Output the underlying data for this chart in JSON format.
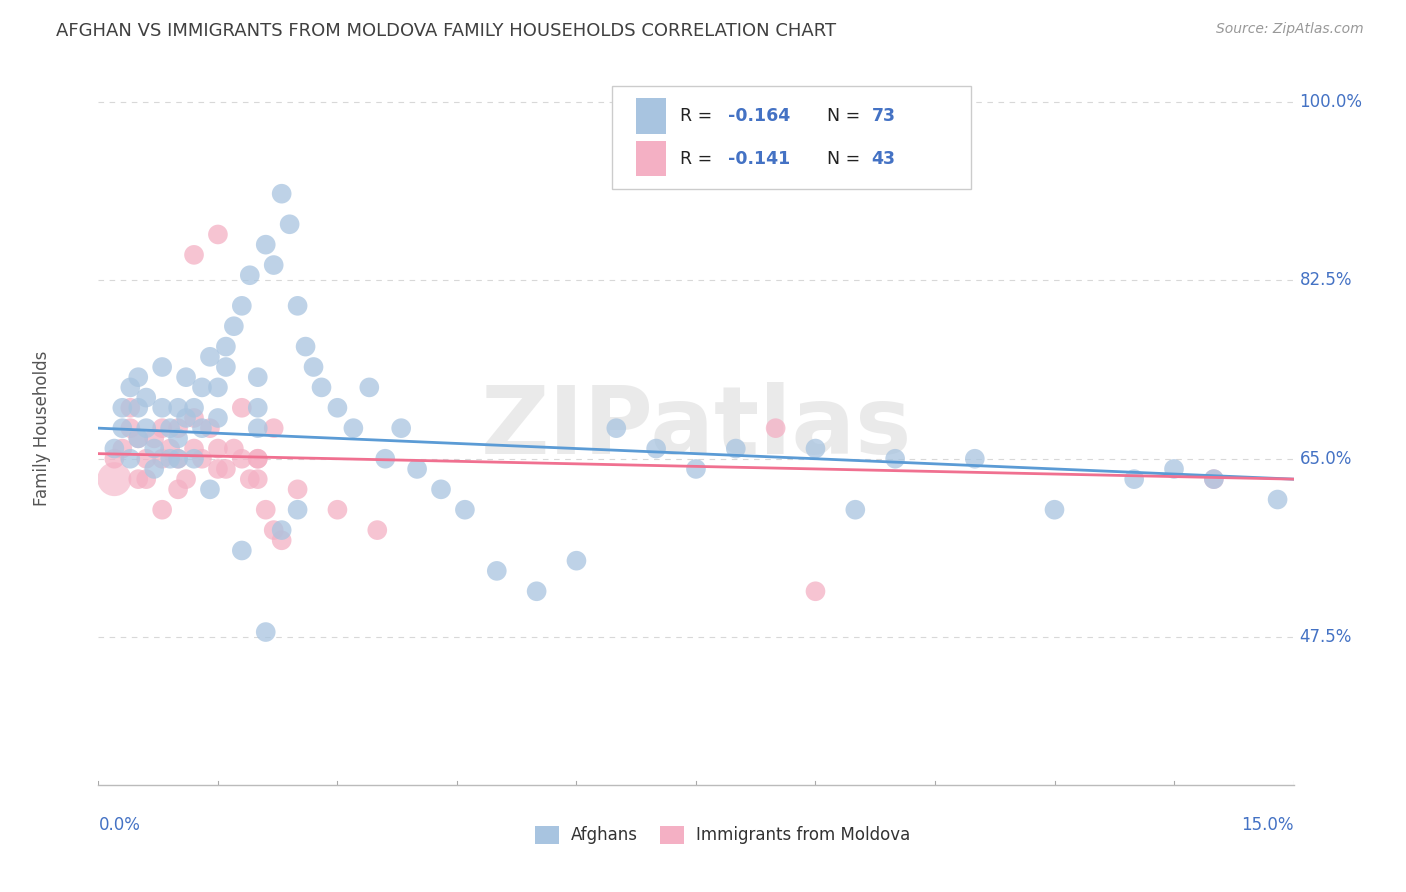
{
  "title": "AFGHAN VS IMMIGRANTS FROM MOLDOVA FAMILY HOUSEHOLDS CORRELATION CHART",
  "source": "Source: ZipAtlas.com",
  "ylabel": "Family Households",
  "xlim": [
    0.0,
    15.0
  ],
  "ylim": [
    33.0,
    103.0
  ],
  "yticks": [
    47.5,
    65.0,
    82.5,
    100.0
  ],
  "ytick_labels": [
    "47.5%",
    "65.0%",
    "82.5%",
    "100.0%"
  ],
  "xtick_labels": [
    "0.0%",
    "15.0%"
  ],
  "watermark": "ZIPatlas",
  "afghans_color": "#a8c4e0",
  "moldova_color": "#f4b0c4",
  "line_blue": "#5b9bd5",
  "line_pink": "#f07090",
  "regression_blue": [
    68.0,
    63.0
  ],
  "regression_pink": [
    65.5,
    63.0
  ],
  "background_color": "#ffffff",
  "grid_color": "#d8d8d8",
  "title_color": "#404040",
  "source_color": "#999999",
  "axis_label_color": "#4472c4",
  "legend_r_color": "#4472c4",
  "legend_n_color": "#4472c4",
  "afghans_x": [
    0.2,
    0.3,
    0.3,
    0.4,
    0.4,
    0.5,
    0.5,
    0.5,
    0.6,
    0.6,
    0.7,
    0.7,
    0.8,
    0.8,
    0.9,
    0.9,
    1.0,
    1.0,
    1.0,
    1.1,
    1.1,
    1.2,
    1.2,
    1.3,
    1.3,
    1.4,
    1.5,
    1.5,
    1.6,
    1.6,
    1.7,
    1.8,
    1.9,
    2.0,
    2.0,
    2.1,
    2.2,
    2.3,
    2.4,
    2.5,
    2.6,
    2.7,
    2.8,
    3.0,
    3.2,
    3.4,
    3.6,
    3.8,
    4.0,
    4.3,
    4.6,
    5.0,
    5.5,
    6.0,
    6.5,
    7.0,
    7.5,
    8.0,
    9.0,
    9.5,
    10.0,
    11.0,
    12.0,
    13.0,
    13.5,
    14.0,
    14.8,
    1.8,
    2.1,
    2.3,
    2.5,
    2.0,
    1.4
  ],
  "afghans_y": [
    66,
    68,
    70,
    65,
    72,
    67,
    70,
    73,
    68,
    71,
    64,
    66,
    70,
    74,
    65,
    68,
    67,
    70,
    65,
    69,
    73,
    65,
    70,
    68,
    72,
    75,
    69,
    72,
    74,
    76,
    78,
    80,
    83,
    70,
    73,
    86,
    84,
    91,
    88,
    80,
    76,
    74,
    72,
    70,
    68,
    72,
    65,
    68,
    64,
    62,
    60,
    54,
    52,
    55,
    68,
    66,
    64,
    66,
    66,
    60,
    65,
    65,
    60,
    63,
    64,
    63,
    61,
    56,
    48,
    58,
    60,
    68,
    62
  ],
  "moldova_x": [
    0.2,
    0.3,
    0.4,
    0.4,
    0.5,
    0.5,
    0.6,
    0.7,
    0.8,
    0.8,
    0.9,
    1.0,
    1.0,
    1.1,
    1.2,
    1.2,
    1.3,
    1.4,
    1.5,
    1.5,
    1.6,
    1.7,
    1.8,
    1.9,
    2.0,
    2.0,
    2.1,
    2.2,
    2.3,
    2.5,
    3.0,
    3.5,
    1.2,
    1.5,
    1.8,
    2.0,
    2.2,
    1.0,
    0.8,
    0.6,
    8.5,
    9.0,
    14.0
  ],
  "moldova_y": [
    65,
    66,
    68,
    70,
    63,
    67,
    65,
    67,
    65,
    68,
    66,
    65,
    68,
    63,
    66,
    69,
    65,
    68,
    66,
    64,
    64,
    66,
    65,
    63,
    65,
    63,
    60,
    58,
    57,
    62,
    60,
    58,
    85,
    87,
    70,
    65,
    68,
    62,
    60,
    63,
    68,
    52,
    63
  ]
}
